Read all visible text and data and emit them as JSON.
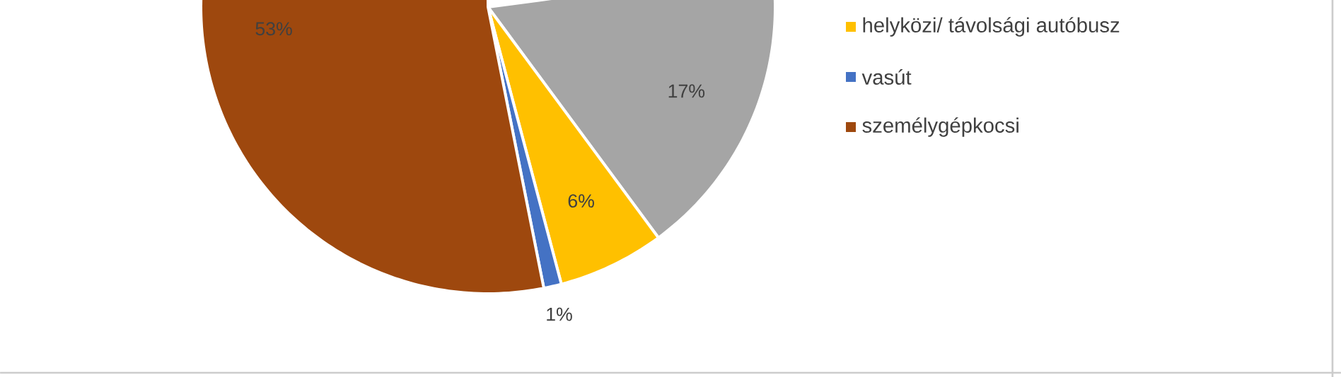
{
  "chart_data": {
    "type": "pie",
    "categories": [
      null,
      "helyközi/ távolsági autóbusz",
      "vasút",
      "személygépkocsi"
    ],
    "values": [
      17,
      6,
      1,
      53
    ],
    "colors": [
      "#a5a5a5",
      "#ffc000",
      "#4472c4",
      "#9e480e"
    ],
    "value_labels": [
      "17%",
      "6%",
      "1%",
      "53%"
    ],
    "legend": "right"
  }
}
